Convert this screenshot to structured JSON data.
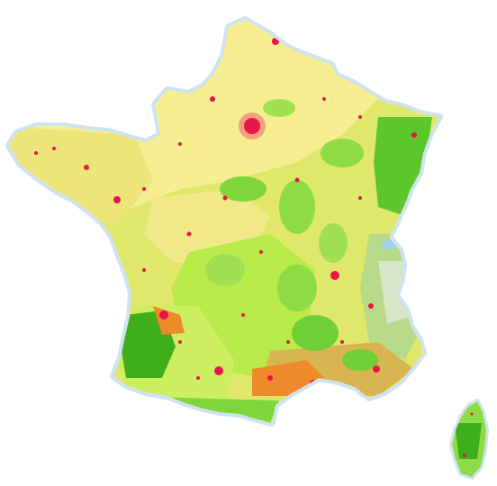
{
  "map": {
    "title": "",
    "colors": {
      "background": "#ffffff",
      "water_halo": "#cfe3f5",
      "artificial_urban": "#e8144c",
      "agricultural_arable": "#f7ee92",
      "heterogeneous_agri": "#e6e35a",
      "pasture_grassland": "#c8ef5a",
      "broadleaf_forest": "#7fd63a",
      "coniferous_forest": "#3fae1c",
      "mixed_forest": "#5cc72a",
      "scrub_vegetation": "#d9b552",
      "vineyards_orchards": "#ee8a2a",
      "mountain_bare": "#d7e6c8",
      "glacier_rock": "#dfe9e6"
    },
    "regions": [
      {
        "name": "mainland"
      },
      {
        "name": "corsica"
      }
    ]
  }
}
